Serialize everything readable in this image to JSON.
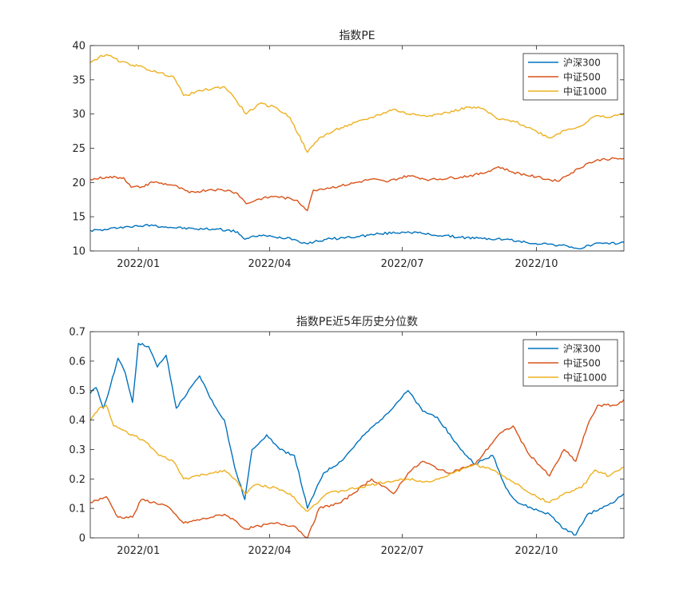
{
  "chart_data": [
    {
      "type": "line",
      "title": "指数PE",
      "xlabel": "",
      "ylabel": "",
      "xlim": [
        "2021-11-29",
        "2022-11-30"
      ],
      "ylim": [
        10,
        40
      ],
      "yticks": [
        10,
        15,
        20,
        25,
        30,
        35,
        40
      ],
      "xticks": [
        "2022-01-01",
        "2022-04-01",
        "2022-07-01",
        "2022-10-01"
      ],
      "xtick_labels": [
        "2022/01",
        "2022/04",
        "2022/07",
        "2022/10"
      ],
      "grid": false,
      "legend_position": "top-right",
      "series": [
        {
          "name": "沪深300",
          "color": "#0072BD",
          "points": [
            [
              "2021-11-29",
              13.0
            ],
            [
              "2021-12-10",
              13.1
            ],
            [
              "2021-12-20",
              13.5
            ],
            [
              "2022-01-01",
              13.6
            ],
            [
              "2022-01-10",
              13.8
            ],
            [
              "2022-01-20",
              13.5
            ],
            [
              "2022-02-10",
              13.2
            ],
            [
              "2022-02-25",
              13.2
            ],
            [
              "2022-03-10",
              12.8
            ],
            [
              "2022-03-15",
              11.7
            ],
            [
              "2022-03-25",
              12.3
            ],
            [
              "2022-04-05",
              12.0
            ],
            [
              "2022-04-15",
              11.9
            ],
            [
              "2022-04-26",
              11.1
            ],
            [
              "2022-05-10",
              11.7
            ],
            [
              "2022-05-31",
              12.1
            ],
            [
              "2022-06-15",
              12.5
            ],
            [
              "2022-07-05",
              12.8
            ],
            [
              "2022-07-20",
              12.4
            ],
            [
              "2022-08-10",
              12.0
            ],
            [
              "2022-08-25",
              11.8
            ],
            [
              "2022-09-10",
              11.7
            ],
            [
              "2022-09-25",
              11.2
            ],
            [
              "2022-10-10",
              11.0
            ],
            [
              "2022-10-25",
              10.6
            ],
            [
              "2022-10-31",
              10.3
            ],
            [
              "2022-11-10",
              11.1
            ],
            [
              "2022-11-20",
              11.0
            ],
            [
              "2022-11-30",
              11.3
            ]
          ]
        },
        {
          "name": "中证500",
          "color": "#D95319",
          "points": [
            [
              "2021-11-29",
              20.4
            ],
            [
              "2021-12-10",
              20.8
            ],
            [
              "2021-12-22",
              20.7
            ],
            [
              "2021-12-27",
              19.3
            ],
            [
              "2022-01-05",
              19.4
            ],
            [
              "2022-01-10",
              20.1
            ],
            [
              "2022-01-25",
              19.6
            ],
            [
              "2022-02-05",
              18.5
            ],
            [
              "2022-02-20",
              19.0
            ],
            [
              "2022-03-05",
              18.8
            ],
            [
              "2022-03-10",
              18.4
            ],
            [
              "2022-03-16",
              16.9
            ],
            [
              "2022-03-25",
              17.6
            ],
            [
              "2022-04-05",
              18.0
            ],
            [
              "2022-04-20",
              17.4
            ],
            [
              "2022-04-27",
              15.9
            ],
            [
              "2022-05-01",
              18.9
            ],
            [
              "2022-05-20",
              19.5
            ],
            [
              "2022-06-10",
              20.5
            ],
            [
              "2022-06-20",
              20.1
            ],
            [
              "2022-07-05",
              21.0
            ],
            [
              "2022-07-20",
              20.4
            ],
            [
              "2022-08-10",
              20.8
            ],
            [
              "2022-08-25",
              21.3
            ],
            [
              "2022-09-05",
              22.3
            ],
            [
              "2022-09-15",
              21.5
            ],
            [
              "2022-10-01",
              20.8
            ],
            [
              "2022-10-15",
              20.2
            ],
            [
              "2022-10-25",
              21.4
            ],
            [
              "2022-11-05",
              22.8
            ],
            [
              "2022-11-15",
              23.4
            ],
            [
              "2022-11-30",
              23.5
            ]
          ]
        },
        {
          "name": "中证1000",
          "color": "#EDB120",
          "points": [
            [
              "2021-11-29",
              37.5
            ],
            [
              "2021-12-05",
              38.3
            ],
            [
              "2021-12-10",
              38.7
            ],
            [
              "2021-12-20",
              37.6
            ],
            [
              "2022-01-01",
              37.0
            ],
            [
              "2022-01-15",
              36.0
            ],
            [
              "2022-01-25",
              35.5
            ],
            [
              "2022-02-01",
              32.7
            ],
            [
              "2022-02-15",
              33.5
            ],
            [
              "2022-03-01",
              34.0
            ],
            [
              "2022-03-07",
              32.6
            ],
            [
              "2022-03-16",
              30.0
            ],
            [
              "2022-03-25",
              31.5
            ],
            [
              "2022-04-05",
              31.0
            ],
            [
              "2022-04-15",
              29.5
            ],
            [
              "2022-04-27",
              24.4
            ],
            [
              "2022-05-05",
              26.5
            ],
            [
              "2022-05-20",
              28.0
            ],
            [
              "2022-06-10",
              29.5
            ],
            [
              "2022-06-25",
              30.7
            ],
            [
              "2022-07-05",
              30.0
            ],
            [
              "2022-07-20",
              29.8
            ],
            [
              "2022-08-01",
              30.2
            ],
            [
              "2022-08-15",
              31.0
            ],
            [
              "2022-08-25",
              30.8
            ],
            [
              "2022-09-05",
              29.2
            ],
            [
              "2022-09-15",
              29.0
            ],
            [
              "2022-10-01",
              27.5
            ],
            [
              "2022-10-10",
              26.5
            ],
            [
              "2022-10-20",
              27.6
            ],
            [
              "2022-11-01",
              28.3
            ],
            [
              "2022-11-10",
              29.7
            ],
            [
              "2022-11-20",
              29.5
            ],
            [
              "2022-11-30",
              30.1
            ]
          ]
        }
      ]
    },
    {
      "type": "line",
      "title": "指数PE近5年历史分位数",
      "xlabel": "",
      "ylabel": "",
      "xlim": [
        "2021-11-29",
        "2022-11-30"
      ],
      "ylim": [
        0,
        0.7
      ],
      "yticks": [
        0,
        0.1,
        0.2,
        0.3,
        0.4,
        0.5,
        0.6,
        0.7
      ],
      "ytick_labels": [
        "0",
        "0.1",
        "0.2",
        "0.3",
        "0.4",
        "0.5",
        "0.6",
        "0.7"
      ],
      "xticks": [
        "2022-01-01",
        "2022-04-01",
        "2022-07-01",
        "2022-10-01"
      ],
      "xtick_labels": [
        "2022/01",
        "2022/04",
        "2022/07",
        "2022/10"
      ],
      "grid": false,
      "legend_position": "top-right",
      "series": [
        {
          "name": "沪深300",
          "color": "#0072BD",
          "points": [
            [
              "2021-11-29",
              0.49
            ],
            [
              "2021-12-03",
              0.51
            ],
            [
              "2021-12-08",
              0.44
            ],
            [
              "2021-12-13",
              0.52
            ],
            [
              "2021-12-18",
              0.61
            ],
            [
              "2021-12-23",
              0.56
            ],
            [
              "2021-12-28",
              0.46
            ],
            [
              "2022-01-01",
              0.66
            ],
            [
              "2022-01-08",
              0.65
            ],
            [
              "2022-01-14",
              0.58
            ],
            [
              "2022-01-20",
              0.62
            ],
            [
              "2022-01-27",
              0.44
            ],
            [
              "2022-02-12",
              0.55
            ],
            [
              "2022-02-22",
              0.45
            ],
            [
              "2022-03-01",
              0.4
            ],
            [
              "2022-03-08",
              0.24
            ],
            [
              "2022-03-15",
              0.13
            ],
            [
              "2022-03-20",
              0.3
            ],
            [
              "2022-03-30",
              0.35
            ],
            [
              "2022-04-08",
              0.3
            ],
            [
              "2022-04-18",
              0.28
            ],
            [
              "2022-04-27",
              0.1
            ],
            [
              "2022-05-08",
              0.22
            ],
            [
              "2022-05-20",
              0.26
            ],
            [
              "2022-06-05",
              0.35
            ],
            [
              "2022-06-20",
              0.42
            ],
            [
              "2022-07-05",
              0.5
            ],
            [
              "2022-07-15",
              0.43
            ],
            [
              "2022-07-25",
              0.41
            ],
            [
              "2022-08-10",
              0.3
            ],
            [
              "2022-08-20",
              0.25
            ],
            [
              "2022-09-01",
              0.28
            ],
            [
              "2022-09-10",
              0.17
            ],
            [
              "2022-09-18",
              0.12
            ],
            [
              "2022-09-28",
              0.1
            ],
            [
              "2022-10-10",
              0.08
            ],
            [
              "2022-10-20",
              0.03
            ],
            [
              "2022-10-28",
              0.01
            ],
            [
              "2022-11-05",
              0.08
            ],
            [
              "2022-11-15",
              0.1
            ],
            [
              "2022-11-25",
              0.13
            ],
            [
              "2022-11-30",
              0.15
            ]
          ]
        },
        {
          "name": "中证500",
          "color": "#D95319",
          "points": [
            [
              "2021-11-29",
              0.12
            ],
            [
              "2021-12-10",
              0.14
            ],
            [
              "2021-12-18",
              0.07
            ],
            [
              "2021-12-28",
              0.07
            ],
            [
              "2022-01-03",
              0.13
            ],
            [
              "2022-01-20",
              0.11
            ],
            [
              "2022-02-01",
              0.05
            ],
            [
              "2022-02-20",
              0.07
            ],
            [
              "2022-03-01",
              0.08
            ],
            [
              "2022-03-08",
              0.06
            ],
            [
              "2022-03-15",
              0.03
            ],
            [
              "2022-03-25",
              0.04
            ],
            [
              "2022-04-05",
              0.05
            ],
            [
              "2022-04-18",
              0.04
            ],
            [
              "2022-04-27",
              0.0
            ],
            [
              "2022-05-05",
              0.1
            ],
            [
              "2022-05-20",
              0.12
            ],
            [
              "2022-06-10",
              0.2
            ],
            [
              "2022-06-25",
              0.15
            ],
            [
              "2022-07-05",
              0.22
            ],
            [
              "2022-07-15",
              0.26
            ],
            [
              "2022-08-01",
              0.22
            ],
            [
              "2022-08-20",
              0.25
            ],
            [
              "2022-09-05",
              0.35
            ],
            [
              "2022-09-15",
              0.38
            ],
            [
              "2022-09-25",
              0.29
            ],
            [
              "2022-10-10",
              0.21
            ],
            [
              "2022-10-20",
              0.3
            ],
            [
              "2022-10-28",
              0.26
            ],
            [
              "2022-11-05",
              0.38
            ],
            [
              "2022-11-12",
              0.45
            ],
            [
              "2022-11-25",
              0.45
            ],
            [
              "2022-11-30",
              0.47
            ]
          ]
        },
        {
          "name": "中证1000",
          "color": "#EDB120",
          "points": [
            [
              "2021-11-29",
              0.4
            ],
            [
              "2021-12-05",
              0.44
            ],
            [
              "2021-12-10",
              0.45
            ],
            [
              "2021-12-15",
              0.38
            ],
            [
              "2021-12-28",
              0.35
            ],
            [
              "2022-01-05",
              0.33
            ],
            [
              "2022-01-15",
              0.28
            ],
            [
              "2022-01-25",
              0.26
            ],
            [
              "2022-02-01",
              0.2
            ],
            [
              "2022-02-20",
              0.22
            ],
            [
              "2022-03-01",
              0.23
            ],
            [
              "2022-03-08",
              0.2
            ],
            [
              "2022-03-15",
              0.15
            ],
            [
              "2022-03-22",
              0.18
            ],
            [
              "2022-04-05",
              0.17
            ],
            [
              "2022-04-15",
              0.15
            ],
            [
              "2022-04-27",
              0.09
            ],
            [
              "2022-05-10",
              0.15
            ],
            [
              "2022-06-01",
              0.17
            ],
            [
              "2022-06-20",
              0.19
            ],
            [
              "2022-07-05",
              0.2
            ],
            [
              "2022-07-20",
              0.19
            ],
            [
              "2022-08-05",
              0.22
            ],
            [
              "2022-08-20",
              0.25
            ],
            [
              "2022-09-01",
              0.23
            ],
            [
              "2022-09-15",
              0.19
            ],
            [
              "2022-10-01",
              0.14
            ],
            [
              "2022-10-10",
              0.12
            ],
            [
              "2022-10-20",
              0.15
            ],
            [
              "2022-11-01",
              0.17
            ],
            [
              "2022-11-10",
              0.23
            ],
            [
              "2022-11-20",
              0.21
            ],
            [
              "2022-11-30",
              0.24
            ]
          ]
        }
      ]
    }
  ]
}
